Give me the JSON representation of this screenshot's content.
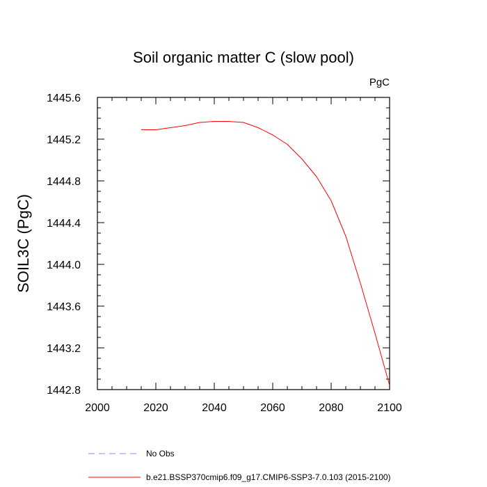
{
  "chart_data": {
    "type": "line",
    "title": "Soil organic matter C (slow pool)",
    "units_label": "PgC",
    "xlabel": "",
    "ylabel": "SOIL3C  (PgC)",
    "xlim": [
      2000,
      2100
    ],
    "ylim": [
      1442.8,
      1445.6
    ],
    "xticks": [
      2000,
      2020,
      2040,
      2060,
      2080,
      2100
    ],
    "xtick_labels": [
      "2000",
      "2020",
      "2040",
      "2060",
      "2080",
      "2100"
    ],
    "yticks": [
      1442.8,
      1443.2,
      1443.6,
      1444.0,
      1444.4,
      1444.8,
      1445.2,
      1445.6
    ],
    "ytick_labels": [
      "1442.8",
      "1443.2",
      "1443.6",
      "1444.0",
      "1444.4",
      "1444.8",
      "1445.2",
      "1445.6"
    ],
    "grid": false,
    "series": [
      {
        "name": "b.e21.BSSP370cmip6.f09_g17.CMIP6-SSP3-7.0.103 (2015-2100)",
        "color": "#ff0000",
        "style": "solid",
        "x": [
          2015,
          2020,
          2025,
          2030,
          2035,
          2040,
          2045,
          2050,
          2055,
          2060,
          2065,
          2070,
          2075,
          2080,
          2085,
          2090,
          2095,
          2100
        ],
        "values": [
          1445.29,
          1445.29,
          1445.31,
          1445.33,
          1445.36,
          1445.37,
          1445.37,
          1445.36,
          1445.31,
          1445.24,
          1445.15,
          1445.01,
          1444.84,
          1444.61,
          1444.27,
          1443.82,
          1443.34,
          1442.84
        ]
      }
    ],
    "legend": [
      {
        "label": "No Obs",
        "color": "#8a8aff",
        "style": "dashed"
      },
      {
        "label": "b.e21.BSSP370cmip6.f09_g17.CMIP6-SSP3-7.0.103 (2015-2100)",
        "color": "#ff0000",
        "style": "solid"
      }
    ]
  }
}
